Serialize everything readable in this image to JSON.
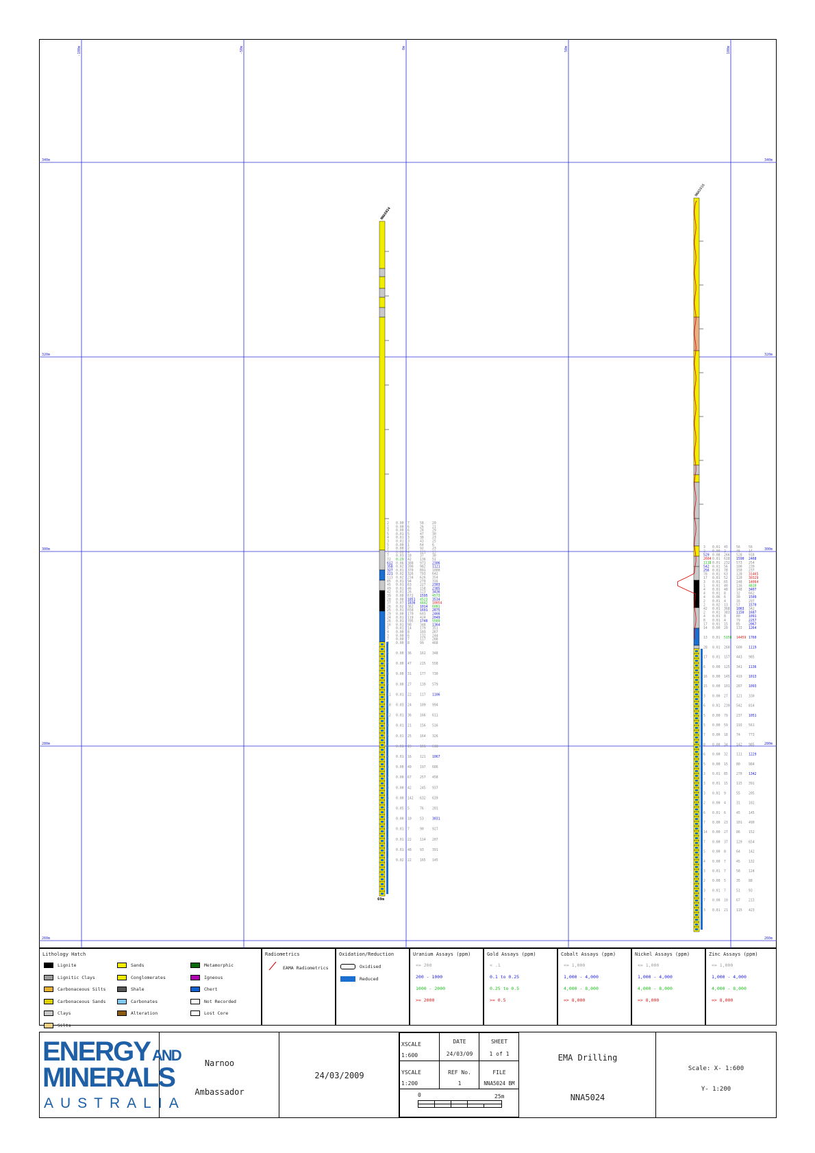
{
  "plot": {
    "x_ticks": [
      "-100m",
      "-50m",
      "0m",
      "50m",
      "100m"
    ],
    "y_ticks": [
      "340m",
      "320m",
      "300m",
      "280m",
      "260m"
    ],
    "holes": [
      {
        "name": "NNA5024",
        "depth_label": "69m"
      },
      {
        "name": "NNA5016",
        "depth_label": ""
      }
    ],
    "colors": {
      "grid": "#2b2bd6",
      "sands": "#f2ec00",
      "clays": "#c8c8c8",
      "lignite": "#000000",
      "reduced": "#1a6fd0",
      "alteration": "#e8b080",
      "radiometrics": "#e00000"
    },
    "assays_a": [
      [
        "2",
        "0.00",
        "7",
        "58",
        "20"
      ],
      [
        "2",
        "0.00",
        "6",
        "26",
        "21"
      ],
      [
        "3",
        "0.00",
        "6",
        "28",
        "29"
      ],
      [
        "5",
        "0.01",
        "5",
        "47",
        "30"
      ],
      [
        "4",
        "0.01",
        "3",
        "38",
        "23"
      ],
      [
        "3",
        "0.01",
        "3",
        "43",
        "25"
      ],
      [
        "5",
        "0.00",
        "1",
        "64",
        "6"
      ],
      [
        "2",
        "0.00",
        "2",
        "92",
        "23"
      ],
      [
        "3",
        "0.00",
        "4",
        "121",
        "15"
      ],
      [
        "7",
        "0.03",
        "18",
        "37",
        "30"
      ],
      [
        "72",
        "0.29",
        "42",
        "136",
        "51"
      ],
      [
        "612",
        "0.06",
        "388",
        "973",
        "2306"
      ],
      [
        "358",
        "0.02",
        "390",
        "982",
        "1121"
      ],
      [
        "327",
        "0.01",
        "370",
        "891",
        "1000"
      ],
      [
        "221",
        "0.02",
        "326",
        "793",
        "642"
      ],
      [
        "113",
        "0.02",
        "234",
        "626",
        "354"
      ],
      [
        "85",
        "0.01",
        "94",
        "279",
        "316"
      ],
      [
        "45",
        "0.01",
        "63",
        "227",
        "2303"
      ],
      [
        "49",
        "0.01",
        "46",
        "158",
        "2385"
      ],
      [
        "42",
        "0.01",
        "26",
        "123",
        "3436"
      ],
      [
        "39",
        "0.00",
        "672",
        "1595",
        "4573"
      ],
      [
        "28",
        "0.00",
        "1851",
        "4523",
        "3534"
      ],
      [
        "37",
        "0.07",
        "1836",
        "4442",
        "10054"
      ],
      [
        "26",
        "0.02",
        "362",
        "1014",
        "6081"
      ],
      [
        "25",
        "0.01",
        "658",
        "1691",
        "2875"
      ],
      [
        "29",
        "0.00",
        "170",
        "603",
        "2466"
      ],
      [
        "24",
        "0.01",
        "119",
        "424",
        "2049"
      ],
      [
        "26",
        "0.01",
        "705",
        "1740",
        "5589"
      ],
      [
        "16",
        "0.01",
        "98",
        "348",
        "1364"
      ],
      [
        "5",
        "0.01",
        "14",
        "179",
        "351"
      ],
      [
        "4",
        "0.00",
        "8",
        "103",
        "267"
      ],
      [
        "3",
        "0.00",
        "6",
        "132",
        "244"
      ],
      [
        "7",
        "0.00",
        "7",
        "117",
        "288"
      ],
      [
        "8",
        "0.00",
        "8",
        "99",
        "468"
      ],
      [
        "5",
        "0.00",
        "36",
        "162",
        "348"
      ],
      [
        "5",
        "0.00",
        "47",
        "215",
        "558"
      ],
      [
        "8",
        "0.00",
        "31",
        "177",
        "730"
      ],
      [
        "6",
        "0.00",
        "27",
        "139",
        "579"
      ],
      [
        "11",
        "0.01",
        "22",
        "117",
        "1106"
      ],
      [
        "10",
        "0.03",
        "24",
        "109",
        "994"
      ],
      [
        "12",
        "0.01",
        "36",
        "166",
        "611"
      ],
      [
        "8",
        "0.01",
        "21",
        "156",
        "516"
      ],
      [
        "5",
        "0.01",
        "25",
        "164",
        "326"
      ],
      [
        "5",
        "0.01",
        "19",
        "101",
        "618"
      ],
      [
        "4",
        "0.01",
        "16",
        "121",
        "1067"
      ],
      [
        "3",
        "0.00",
        "49",
        "197",
        "686"
      ],
      [
        "7",
        "0.00",
        "67",
        "257",
        "458"
      ],
      [
        "3",
        "0.00",
        "42",
        "245",
        "937"
      ],
      [
        "3",
        "0.00",
        "142",
        "632",
        "639"
      ],
      [
        "2",
        "0.05",
        "5",
        "76",
        "201"
      ],
      [
        "2",
        "0.00",
        "10",
        "53",
        "3031"
      ],
      [
        "2",
        "0.01",
        "7",
        "90",
        "927"
      ],
      [
        "2",
        "0.01",
        "22",
        "114",
        "207"
      ],
      [
        "2",
        "0.01",
        "48",
        "93",
        "391"
      ],
      [
        "1",
        "0.02",
        "22",
        "165",
        "145"
      ]
    ],
    "assays_b": [
      [
        "3",
        "0.01",
        "45",
        "56",
        "56"
      ],
      [
        "2",
        "0.00",
        "2",
        "46",
        "14"
      ],
      [
        "529",
        "0.08",
        "266",
        "528",
        "918"
      ],
      [
        "2604",
        "0.01",
        "618",
        "1590",
        "2468"
      ],
      [
        "1118",
        "0.01",
        "232",
        "573",
        "254"
      ],
      [
        "542",
        "0.01",
        "56",
        "100",
        "239"
      ],
      [
        "256",
        "0.01",
        "78",
        "150",
        "237"
      ],
      [
        "78",
        "0.01",
        "63",
        "128",
        "31465"
      ],
      [
        "17",
        "0.01",
        "52",
        "120",
        "30329"
      ],
      [
        "3",
        "0.01",
        "65",
        "148",
        "14064"
      ],
      [
        "1",
        "0.01",
        "40",
        "116",
        "4810"
      ],
      [
        "4",
        "0.01",
        "48",
        "148",
        "3407"
      ],
      [
        "4",
        "0.01",
        "8",
        "32",
        "662"
      ],
      [
        "4",
        "0.06",
        "6",
        "30",
        "1509"
      ],
      [
        "2",
        "0.01",
        "4",
        "16",
        "297"
      ],
      [
        "2",
        "0.02",
        "13",
        "57",
        "1570"
      ],
      [
        "42",
        "0.01",
        "368",
        "1063",
        "342"
      ],
      [
        "2",
        "0.01",
        "383",
        "1150",
        "1687"
      ],
      [
        "4",
        "0.01",
        "8",
        "80",
        "1091"
      ],
      [
        "8",
        "0.01",
        "4",
        "79",
        "2257"
      ],
      [
        "17",
        "0.01",
        "15",
        "85",
        "2067"
      ],
      [
        "14",
        "0.00",
        "20",
        "133",
        "1264"
      ],
      [
        "13",
        "0.01",
        "5158",
        "14459",
        "1760"
      ],
      [
        "28",
        "0.01",
        "260",
        "600",
        "1119"
      ],
      [
        "17",
        "0.01",
        "157",
        "443",
        "985"
      ],
      [
        "6",
        "0.00",
        "125",
        "341",
        "1136"
      ],
      [
        "16",
        "0.00",
        "145",
        "419",
        "1013"
      ],
      [
        "15",
        "0.00",
        "101",
        "287",
        "1093"
      ],
      [
        "3",
        "0.00",
        "27",
        "121",
        "330"
      ],
      [
        "6",
        "0.01",
        "239",
        "542",
        "814"
      ],
      [
        "5",
        "0.00",
        "79",
        "237",
        "1051"
      ],
      [
        "5",
        "0.00",
        "59",
        "193",
        "561"
      ],
      [
        "7",
        "0.00",
        "18",
        "74",
        "773"
      ],
      [
        "8",
        "0.00",
        "34",
        "142",
        "985"
      ],
      [
        "6",
        "0.00",
        "32",
        "111",
        "1229"
      ],
      [
        "5",
        "0.00",
        "15",
        "80",
        "984"
      ],
      [
        "3",
        "0.01",
        "85",
        "270",
        "1342"
      ],
      [
        "3",
        "0.01",
        "15",
        "115",
        "391"
      ],
      [
        "3",
        "0.01",
        "9",
        "55",
        "205"
      ],
      [
        "2",
        "0.00",
        "4",
        "31",
        "102"
      ],
      [
        "6",
        "0.01",
        "6",
        "45",
        "145"
      ],
      [
        "7",
        "0.00",
        "23",
        "101",
        "490"
      ],
      [
        "14",
        "0.00",
        "27",
        "86",
        "152"
      ],
      [
        "7",
        "0.00",
        "37",
        "129",
        "654"
      ],
      [
        "5",
        "0.00",
        "8",
        "64",
        "142"
      ],
      [
        "4",
        "0.00",
        "7",
        "45",
        "132"
      ],
      [
        "3",
        "0.01",
        "7",
        "58",
        "124"
      ],
      [
        "2",
        "0.00",
        "5",
        "35",
        "88"
      ],
      [
        "3",
        "0.01",
        "7",
        "51",
        "93"
      ],
      [
        "7",
        "0.00",
        "10",
        "67",
        "213"
      ],
      [
        "3",
        "0.01",
        "21",
        "115",
        "423"
      ]
    ]
  },
  "legend": {
    "lithology": {
      "title": "Lithology Hatch",
      "items": [
        {
          "label": "Lignite",
          "color": "#000000"
        },
        {
          "label": "Lignitic Clays",
          "color": "#9a9a9a"
        },
        {
          "label": "Carbonaceous Silts",
          "color": "#e8b030"
        },
        {
          "label": "Carbonaceous Sands",
          "color": "#e0d000"
        },
        {
          "label": "Clays",
          "color": "#c8c8c8"
        },
        {
          "label": "Silts",
          "color": "#f0d080"
        },
        {
          "label": "Sands",
          "color": "#f2ec00"
        },
        {
          "label": "Conglomerates",
          "color": "#f2ec00"
        },
        {
          "label": "Shale",
          "color": "#555555"
        },
        {
          "label": "Carbonates",
          "color": "#80c8f0"
        },
        {
          "label": "Alteration",
          "color": "#8a5a10"
        },
        {
          "label": "Metamorphic",
          "color": "#0a6a0a"
        },
        {
          "label": "Igneous",
          "color": "#b000b0"
        },
        {
          "label": "Chert",
          "color": "#1060d0"
        },
        {
          "label": "Not Recorded",
          "color": "#ffffff"
        },
        {
          "label": "Lost Core",
          "color": "#ffffff"
        }
      ]
    },
    "radiometrics": {
      "title": "Radiometrics",
      "items": [
        {
          "label": "EAMA Radiometrics"
        }
      ]
    },
    "oxidation": {
      "title": "Oxidation/Reduction",
      "items": [
        {
          "label": "Oxidised",
          "color": "#ffffff"
        },
        {
          "label": "Reduced",
          "color": "#1a6fd0"
        }
      ]
    },
    "uranium": {
      "title": "Uranium Assays (ppm)",
      "items": [
        {
          "label": "<= 200",
          "color": "#9a9a9a"
        },
        {
          "label": "200 - 1000",
          "color": "#2020e0"
        },
        {
          "label": "1000 - 2000",
          "color": "#20c020"
        },
        {
          "label": ">= 2000",
          "color": "#e02020"
        }
      ]
    },
    "gold": {
      "title": "Gold Assays (ppm)",
      "items": [
        {
          "label": "< .1",
          "color": "#9a9a9a"
        },
        {
          "label": "0.1 to 0.25",
          "color": "#2020e0"
        },
        {
          "label": "0.25 to 0.5",
          "color": "#20c020"
        },
        {
          "label": ">= 0.5",
          "color": "#e02020"
        }
      ]
    },
    "cobalt": {
      "title": "Cobalt Assays (ppm)",
      "items": [
        {
          "label": "<= 1,000",
          "color": "#9a9a9a"
        },
        {
          "label": "1,000 - 4,000",
          "color": "#2020e0"
        },
        {
          "label": "4,000 - 8,000",
          "color": "#20c020"
        },
        {
          "label": "=> 8,000",
          "color": "#e02020"
        }
      ]
    },
    "nickel": {
      "title": "Nickel Assays (ppm)",
      "items": [
        {
          "label": "<= 1,000",
          "color": "#9a9a9a"
        },
        {
          "label": "1,000 - 4,000",
          "color": "#2020e0"
        },
        {
          "label": "4,000 - 8,000",
          "color": "#20c020"
        },
        {
          "label": "=> 8,000",
          "color": "#e02020"
        }
      ]
    },
    "zinc": {
      "title": "Zinc Assays (ppm)",
      "items": [
        {
          "label": "<= 1,000",
          "color": "#9a9a9a"
        },
        {
          "label": "1,000 - 4,000",
          "color": "#2020e0"
        },
        {
          "label": "4,000 - 8,000",
          "color": "#20c020"
        },
        {
          "label": "=> 8,000",
          "color": "#e02020"
        }
      ]
    }
  },
  "title_block": {
    "logo": {
      "line1": "ENERGY",
      "line1b": "AND",
      "line2": "MINERALS",
      "line3": "AUSTRALIA"
    },
    "project": "Narnoo",
    "prospect": "Ambassador",
    "date_main": "24/03/2009",
    "xscale_label": "XSCALE",
    "xscale_value": "1:600",
    "yscale_label": "YSCALE",
    "yscale_value": "1:200",
    "date_label": "DATE",
    "date_value": "24/03/09",
    "sheet_label": "SHEET",
    "sheet_value": "1 of 1",
    "ref_label": "REF No.",
    "ref_value": "1",
    "file_label": "FILE",
    "file_value": "NNA5024 BM",
    "scale_bar_start": "0",
    "scale_bar_end": "25m",
    "company": "EMA Drilling",
    "hole": "NNA5024",
    "scale_x": "Scale: X- 1:600",
    "scale_y": "Y- 1:200"
  }
}
